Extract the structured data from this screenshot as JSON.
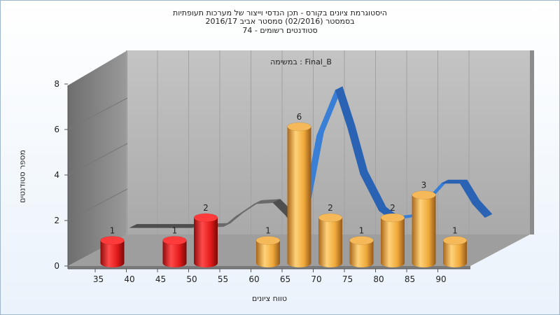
{
  "chart_data": {
    "type": "bar",
    "title_lines": [
      "היסטוגרמת ציונים בקורס - תכן הנדסי וייצור של מערכות תעופתיות",
      "בסמסטר  (02/2016)  סמסטר אביב 2016/17",
      "סטודנטים רשומים - 74"
    ],
    "annotation": "במשימה : Final_B",
    "xlabel": "טווח ציונים",
    "ylabel": "מספר סטודנטים",
    "ylim": [
      0,
      8
    ],
    "y_ticks": [
      "0",
      "2",
      "4",
      "6",
      "8"
    ],
    "x_ticks": [
      "35",
      "40",
      "45",
      "50",
      "55",
      "60",
      "65",
      "70",
      "75",
      "80",
      "85",
      "90"
    ],
    "bars": [
      {
        "x": 35,
        "value": 1,
        "label": "1",
        "group": "red"
      },
      {
        "x": 45,
        "value": 1,
        "label": "1",
        "group": "red"
      },
      {
        "x": 50,
        "value": 2,
        "label": "2",
        "group": "red"
      },
      {
        "x": 60,
        "value": 1,
        "label": "1",
        "group": "orange"
      },
      {
        "x": 65,
        "value": 6,
        "label": "6",
        "group": "orange"
      },
      {
        "x": 70,
        "value": 2,
        "label": "2",
        "group": "orange"
      },
      {
        "x": 75,
        "value": 1,
        "label": "1",
        "group": "orange"
      },
      {
        "x": 80,
        "value": 2,
        "label": "2",
        "group": "orange"
      },
      {
        "x": 85,
        "value": 3,
        "label": "3",
        "group": "orange"
      },
      {
        "x": 90,
        "value": 1,
        "label": "1",
        "group": "orange"
      }
    ],
    "curve": {
      "x": [
        35,
        40,
        45,
        50,
        52,
        55,
        58,
        60,
        62,
        65,
        68,
        70,
        72,
        75,
        77,
        80,
        83,
        85,
        88,
        90,
        92
      ],
      "y": [
        0.45,
        0.45,
        0.45,
        0.5,
        0.95,
        1.5,
        1.55,
        1.0,
        0.2,
        4.5,
        6.5,
        4.8,
        2.8,
        1.2,
        0.8,
        0.9,
        1.8,
        2.4,
        2.4,
        1.5,
        0.9
      ]
    },
    "colors": {
      "red": "#e31b1b",
      "orange": "#f0a93a",
      "curve_blue": "#2f6fc5",
      "curve_gray": "#5a5a5a",
      "back_wall": "#b8b8b8",
      "side_wall": "#808080",
      "floor": "#9a9a9a"
    },
    "grid": true,
    "legend": "none"
  }
}
